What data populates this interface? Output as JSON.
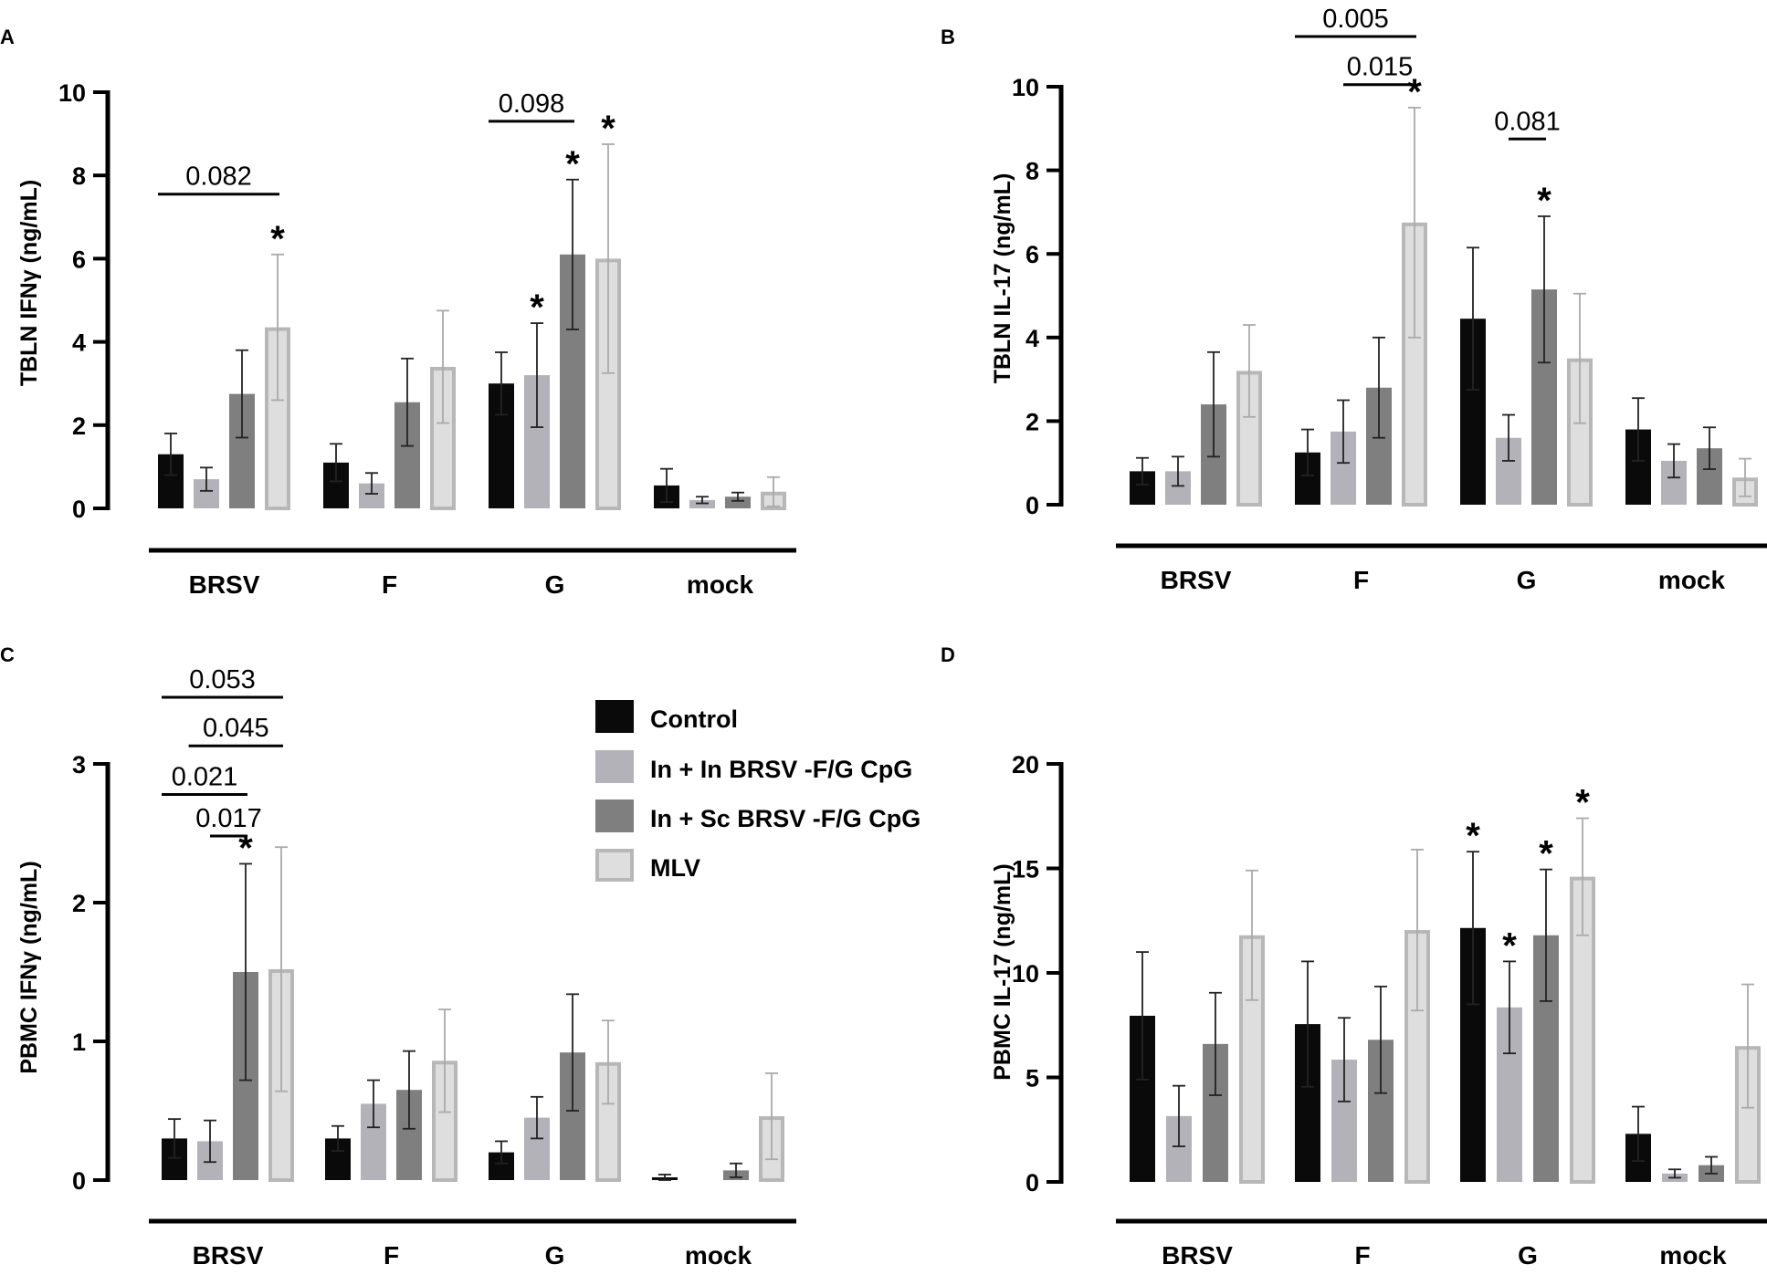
{
  "colors": {
    "series": [
      "#0a0a0a",
      "#b2b2b8",
      "#7f7f7f",
      "#dedede"
    ],
    "series_stroke": [
      "#0a0a0a",
      "#b2b2b8",
      "#7f7f7f",
      "#b7b7b7"
    ],
    "axis": "#000000",
    "error": "#222222"
  },
  "legend": {
    "items": [
      {
        "label": "Control"
      },
      {
        "label": "In + In BRSV -F/G CpG"
      },
      {
        "label": "In + Sc BRSV -F/G CpG"
      },
      {
        "label": "MLV"
      }
    ]
  },
  "chart_data": [
    {
      "panel": "A",
      "type": "bar",
      "ylabel": "TBLN IFNγ (ng/mL)",
      "ylim": [
        0,
        10
      ],
      "yticks": [
        "0",
        "2",
        "4",
        "6",
        "8",
        "10"
      ],
      "categories": [
        "BRSV",
        "F",
        "G",
        "mock"
      ],
      "series": [
        {
          "name": "Control",
          "values": [
            1.3,
            1.1,
            3.0,
            0.55
          ],
          "errors": [
            0.5,
            0.45,
            0.75,
            0.4
          ]
        },
        {
          "name": "In + In BRSV -F/G CpG",
          "values": [
            0.7,
            0.6,
            3.2,
            0.2
          ],
          "errors": [
            0.28,
            0.25,
            1.25,
            0.08
          ]
        },
        {
          "name": "In + Sc BRSV -F/G CpG",
          "values": [
            2.75,
            2.55,
            6.1,
            0.28
          ],
          "errors": [
            1.05,
            1.05,
            1.8,
            0.1
          ]
        },
        {
          "name": "MLV",
          "values": [
            4.35,
            3.4,
            6.0,
            0.4
          ],
          "errors": [
            1.75,
            1.35,
            2.75,
            0.35
          ]
        }
      ],
      "stars": [
        {
          "category": 0,
          "series": 3,
          "text": "*"
        },
        {
          "category": 2,
          "series": 1,
          "text": "*"
        },
        {
          "category": 2,
          "series": 2,
          "text": "*"
        },
        {
          "category": 2,
          "series": 3,
          "text": "*"
        }
      ],
      "brackets": [
        {
          "category": 0,
          "from": 0,
          "to": 3,
          "y": 7.55,
          "text": "0.082"
        },
        {
          "category": 2,
          "from": 0,
          "to": 2,
          "y": 9.3,
          "text": "0.098"
        }
      ]
    },
    {
      "panel": "B",
      "type": "bar",
      "ylabel": "TBLN IL-17 (ng/mL)",
      "ylim": [
        0,
        10
      ],
      "yticks": [
        "0",
        "2",
        "4",
        "6",
        "8",
        "10"
      ],
      "categories": [
        "BRSV",
        "F",
        "G",
        "mock"
      ],
      "series": [
        {
          "name": "Control",
          "values": [
            0.8,
            1.25,
            4.45,
            1.8
          ],
          "errors": [
            0.32,
            0.55,
            1.7,
            0.75
          ]
        },
        {
          "name": "In + In BRSV -F/G CpG",
          "values": [
            0.8,
            1.75,
            1.6,
            1.05
          ],
          "errors": [
            0.35,
            0.75,
            0.55,
            0.4
          ]
        },
        {
          "name": "In + Sc BRSV -F/G CpG",
          "values": [
            2.4,
            2.8,
            5.15,
            1.35
          ],
          "errors": [
            1.25,
            1.2,
            1.75,
            0.5
          ]
        },
        {
          "name": "MLV",
          "values": [
            3.2,
            6.75,
            3.5,
            0.65
          ],
          "errors": [
            1.1,
            2.75,
            1.55,
            0.45
          ]
        }
      ],
      "stars": [
        {
          "category": 1,
          "series": 3,
          "text": "*"
        },
        {
          "category": 2,
          "series": 2,
          "text": "*"
        }
      ],
      "brackets": [
        {
          "category": 1,
          "from": 0,
          "to": 3,
          "y": 11.2,
          "text": "0.005"
        },
        {
          "category": 1,
          "from": 1,
          "to": 3,
          "y": 10.05,
          "text": "0.015"
        },
        {
          "category": 2,
          "from": 1,
          "to": 2,
          "y": 8.75,
          "text": "0.081"
        }
      ]
    },
    {
      "panel": "C",
      "type": "bar",
      "ylabel": "PBMC IFNγ (ng/mL)",
      "ylim": [
        0,
        3
      ],
      "yticks": [
        "0",
        "1",
        "2",
        "3"
      ],
      "categories": [
        "BRSV",
        "F",
        "G",
        "mock"
      ],
      "series": [
        {
          "name": "Control",
          "values": [
            0.3,
            0.3,
            0.2,
            0.02
          ],
          "errors": [
            0.14,
            0.09,
            0.08,
            0.02
          ]
        },
        {
          "name": "In + In BRSV -F/G CpG",
          "values": [
            0.28,
            0.55,
            0.45,
            0.0
          ],
          "errors": [
            0.15,
            0.17,
            0.15,
            0.0
          ]
        },
        {
          "name": "In + Sc BRSV -F/G CpG",
          "values": [
            1.5,
            0.65,
            0.92,
            0.07
          ],
          "errors": [
            0.78,
            0.28,
            0.42,
            0.05
          ]
        },
        {
          "name": "MLV",
          "values": [
            1.52,
            0.86,
            0.85,
            0.46
          ],
          "errors": [
            0.88,
            0.37,
            0.3,
            0.31
          ]
        }
      ],
      "stars": [
        {
          "category": 0,
          "series": 2,
          "text": "*"
        }
      ],
      "brackets": [
        {
          "category": 0,
          "from": 0,
          "to": 3,
          "y": 3.48,
          "text": "0.053"
        },
        {
          "category": 0,
          "from": 0.4,
          "to": 3,
          "y": 3.13,
          "text": "0.045"
        },
        {
          "category": 0,
          "from": 0,
          "to": 2,
          "y": 2.78,
          "text": "0.021"
        },
        {
          "category": 0,
          "from": 1,
          "to": 2,
          "y": 2.48,
          "text": "0.017"
        }
      ]
    },
    {
      "panel": "D",
      "type": "bar",
      "ylabel": "PBMC IL-17 (ng/mL)",
      "ylim": [
        0,
        20
      ],
      "yticks": [
        "0",
        "5",
        "10",
        "15",
        "20"
      ],
      "categories": [
        "BRSV",
        "F",
        "G",
        "mock"
      ],
      "series": [
        {
          "name": "Control",
          "values": [
            7.95,
            7.55,
            12.15,
            2.3
          ],
          "errors": [
            3.05,
            3.0,
            3.65,
            1.3
          ]
        },
        {
          "name": "In + In BRSV -F/G CpG",
          "values": [
            3.15,
            5.85,
            8.35,
            0.4
          ],
          "errors": [
            1.45,
            2.0,
            2.2,
            0.2
          ]
        },
        {
          "name": "In + Sc BRSV -F/G CpG",
          "values": [
            6.6,
            6.8,
            11.8,
            0.8
          ],
          "errors": [
            2.45,
            2.55,
            3.15,
            0.4
          ]
        },
        {
          "name": "MLV",
          "values": [
            11.8,
            12.05,
            14.6,
            6.5
          ],
          "errors": [
            3.1,
            3.85,
            2.8,
            2.95
          ]
        }
      ],
      "stars": [
        {
          "category": 2,
          "series": 0,
          "text": "*"
        },
        {
          "category": 2,
          "series": 1,
          "text": "*"
        },
        {
          "category": 2,
          "series": 2,
          "text": "*"
        },
        {
          "category": 2,
          "series": 3,
          "text": "*"
        }
      ],
      "brackets": []
    }
  ]
}
